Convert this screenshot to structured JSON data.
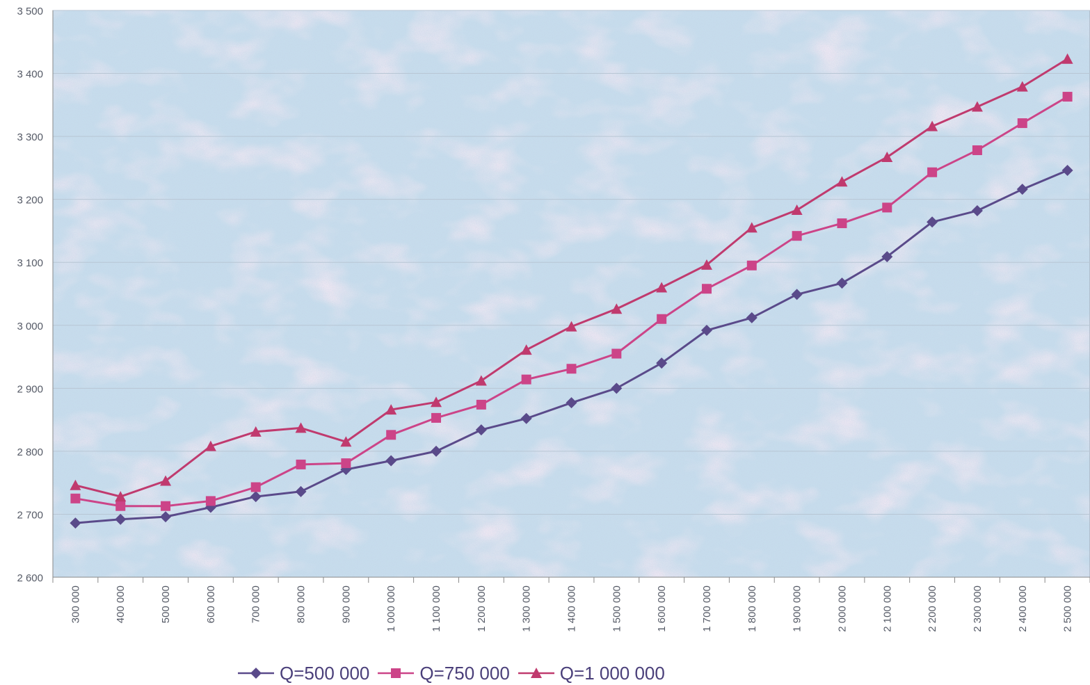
{
  "chart_data": {
    "type": "line",
    "title": "",
    "xlabel": "",
    "ylabel": "",
    "ylim": [
      2600,
      3500
    ],
    "yticks": [
      "3 500",
      "3 400",
      "3 300",
      "3 200",
      "3 100",
      "3 000",
      "2 900",
      "2 800",
      "2 700",
      "2 600"
    ],
    "ytick_values": [
      3500,
      3400,
      3300,
      3200,
      3100,
      3000,
      2900,
      2800,
      2700,
      2600
    ],
    "categories": [
      "300 000",
      "400 000",
      "500 000",
      "600 000",
      "700 000",
      "800 000",
      "900 000",
      "1 000 000",
      "1 100 000",
      "1 200 000",
      "1 300 000",
      "1 400 000",
      "1 500 000",
      "1 600 000",
      "1 700 000",
      "1 800 000",
      "1 900 000",
      "2 000 000",
      "2 100 000",
      "2 200 000",
      "2 300 000",
      "2 400 000",
      "2 500 000"
    ],
    "grid": true,
    "legend_position": "bottom",
    "series": [
      {
        "name": "Q=500 000",
        "color": "#5a4a8a",
        "marker": "diamond",
        "values": [
          2686,
          2692,
          2696,
          2711,
          2728,
          2736,
          2771,
          2785,
          2800,
          2834,
          2852,
          2877,
          2900,
          2940,
          2992,
          3012,
          3049,
          3067,
          3109,
          3164,
          3182,
          3216,
          3246
        ]
      },
      {
        "name": "Q=750 000",
        "color": "#cc4488",
        "marker": "square",
        "values": [
          2725,
          2713,
          2713,
          2721,
          2743,
          2779,
          2781,
          2826,
          2853,
          2874,
          2914,
          2931,
          2955,
          3010,
          3058,
          3095,
          3142,
          3162,
          3187,
          3243,
          3278,
          3321,
          3363
        ]
      },
      {
        "name": "Q=1 000 000",
        "color": "#c03a6e",
        "marker": "triangle",
        "values": [
          2746,
          2728,
          2753,
          2808,
          2831,
          2837,
          2815,
          2866,
          2878,
          2912,
          2961,
          2998,
          3026,
          3060,
          3096,
          3155,
          3183,
          3228,
          3267,
          3316,
          3347,
          3379,
          3423
        ]
      }
    ]
  }
}
